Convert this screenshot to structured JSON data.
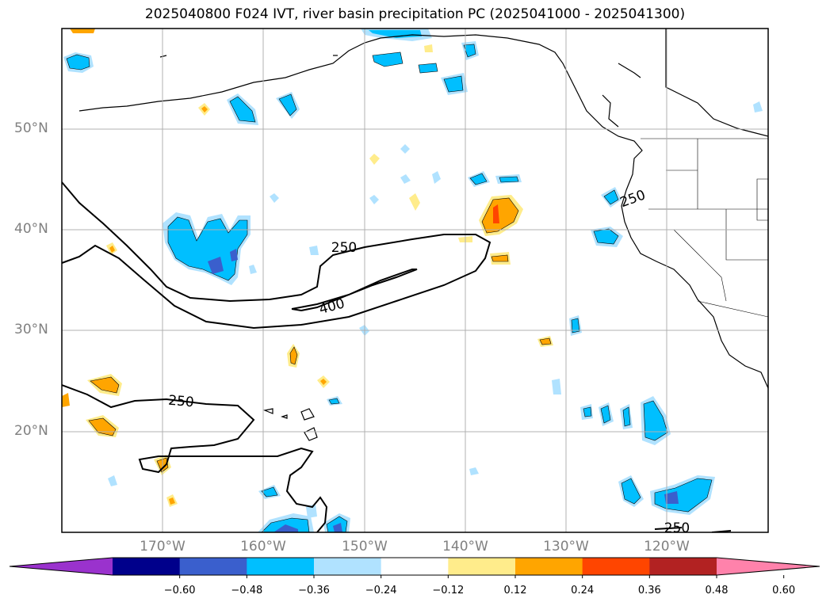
{
  "title": "2025040800 F024 IVT, river basin precipitation PC (2025041000 - 2025041300)",
  "map": {
    "lon_range": [
      -180,
      -110
    ],
    "lat_range": [
      10,
      60
    ],
    "lat_ticks": [
      {
        "value": 50,
        "label": "50°N"
      },
      {
        "value": 40,
        "label": "40°N"
      },
      {
        "value": 30,
        "label": "30°N"
      },
      {
        "value": 20,
        "label": "20°N"
      }
    ],
    "lon_ticks": [
      {
        "value": -170,
        "label": "170°W"
      },
      {
        "value": -160,
        "label": "160°W"
      },
      {
        "value": -150,
        "label": "150°W"
      },
      {
        "value": -140,
        "label": "140°W"
      },
      {
        "value": -130,
        "label": "130°W"
      },
      {
        "value": -120,
        "label": "120°W"
      }
    ],
    "grid": true,
    "ivt_contour_labels": [
      "250",
      "400",
      "250",
      "250",
      "250"
    ]
  },
  "colorbar": {
    "colors": [
      "#9a32cd",
      "#00008b",
      "#3a5fcd",
      "#00bfff",
      "#b0e2ff",
      "#ffffff",
      "#ffec8b",
      "#ffa500",
      "#ff4500",
      "#b22222",
      "#ff82ab"
    ],
    "ticks": [
      "−0.60",
      "−0.48",
      "−0.36",
      "−0.24",
      "−0.12",
      "0.12",
      "0.24",
      "0.36",
      "0.48",
      "0.60"
    ]
  }
}
